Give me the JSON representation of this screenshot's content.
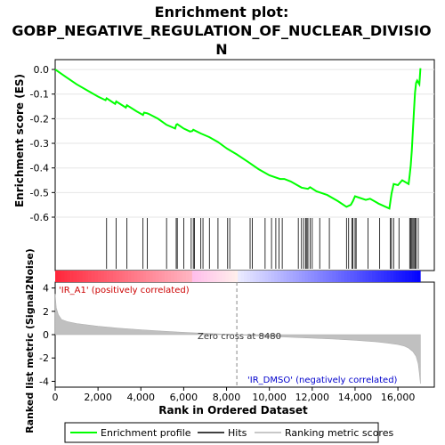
{
  "chart_data": {
    "type": "line",
    "title_line1": "Enrichment plot:",
    "title_line2": "GOBP_NEGATIVE_REGULATION_OF_NUCLEAR_DIVISIO",
    "title_line3": "N",
    "top_panel": {
      "ylabel": "Enrichment score (ES)",
      "ylim": [
        -0.6,
        0.04
      ],
      "yticks": [
        0.0,
        -0.1,
        -0.2,
        -0.3,
        -0.4,
        -0.5,
        -0.6
      ],
      "ytick_labels": [
        "0.0",
        "-0.1",
        "-0.2",
        "-0.3",
        "-0.4",
        "-0.5",
        "-0.6"
      ],
      "line_color": "#00ff00",
      "series": [
        {
          "name": "Enrichment profile",
          "x": [
            0,
            500,
            1000,
            1500,
            2000,
            2350,
            2400,
            2800,
            2850,
            3300,
            3350,
            3800,
            4100,
            4150,
            4300,
            4400,
            4800,
            5200,
            5600,
            5650,
            5700,
            6000,
            6300,
            6400,
            6450,
            6800,
            7200,
            7600,
            8000,
            8480,
            9000,
            9500,
            10000,
            10500,
            10700,
            11000,
            11500,
            11800,
            11900,
            12200,
            12700,
            13200,
            13600,
            13800,
            13900,
            14000,
            14500,
            14700,
            15000,
            15100,
            15600,
            15650,
            15700,
            15800,
            16000,
            16200,
            16500,
            16550,
            16600,
            16650,
            16700,
            16750,
            16800,
            16850,
            16900,
            17000,
            17050
          ],
          "y": [
            0.0,
            -0.03,
            -0.06,
            -0.085,
            -0.11,
            -0.125,
            -0.117,
            -0.14,
            -0.13,
            -0.155,
            -0.145,
            -0.17,
            -0.185,
            -0.175,
            -0.178,
            -0.182,
            -0.2,
            -0.225,
            -0.24,
            -0.225,
            -0.222,
            -0.24,
            -0.252,
            -0.25,
            -0.245,
            -0.26,
            -0.275,
            -0.295,
            -0.32,
            -0.345,
            -0.375,
            -0.405,
            -0.43,
            -0.445,
            -0.445,
            -0.455,
            -0.48,
            -0.485,
            -0.478,
            -0.495,
            -0.51,
            -0.535,
            -0.558,
            -0.55,
            -0.535,
            -0.515,
            -0.53,
            -0.525,
            -0.54,
            -0.545,
            -0.565,
            -0.535,
            -0.505,
            -0.465,
            -0.47,
            -0.45,
            -0.465,
            -0.43,
            -0.39,
            -0.33,
            -0.25,
            -0.17,
            -0.095,
            -0.055,
            -0.045,
            -0.06,
            0.005
          ]
        }
      ]
    },
    "hits_panel": {
      "name": "Hits",
      "hit_ranks": [
        2400,
        2850,
        3350,
        4100,
        4300,
        5200,
        5650,
        5700,
        6000,
        6350,
        6450,
        6500,
        6800,
        6900,
        7200,
        7600,
        8050,
        8150,
        9100,
        9200,
        9800,
        10100,
        10300,
        10450,
        10600,
        11350,
        11500,
        11600,
        11700,
        11750,
        11800,
        11900,
        12000,
        12350,
        12800,
        13600,
        13700,
        13850,
        13900,
        14000,
        14050,
        14600,
        15150,
        15650,
        15700,
        15800,
        16050,
        16550,
        16600,
        16650,
        16700,
        16750,
        16800,
        16850,
        16950
      ]
    },
    "metric_panel": {
      "ylabel": "Ranked list metric (Signal2Noise)",
      "ylim": [
        -4.5,
        4.5
      ],
      "yticks": [
        4,
        2,
        0,
        -2,
        -4
      ],
      "ytick_labels": [
        "4",
        "2",
        "0",
        "-2",
        "-4"
      ],
      "positive_label": "'IR_A1' (positively correlated)",
      "negative_label": "'IR_DMSO' (negatively correlated)",
      "zero_cross_label": "Zero cross at 8480",
      "zero_cross": 8480,
      "series": [
        {
          "name": "Ranking metric scores",
          "x": [
            0,
            50,
            150,
            300,
            600,
            1000,
            2000,
            3000,
            4000,
            5000,
            6000,
            7000,
            8000,
            8480,
            9000,
            10000,
            11000,
            12000,
            13000,
            14000,
            15000,
            15500,
            16000,
            16300,
            16500,
            16700,
            16850,
            16950,
            17000,
            17050
          ],
          "y": [
            3.5,
            2.3,
            1.7,
            1.3,
            1.1,
            0.95,
            0.72,
            0.55,
            0.42,
            0.3,
            0.2,
            0.11,
            0.04,
            0.0,
            -0.06,
            -0.15,
            -0.22,
            -0.3,
            -0.38,
            -0.48,
            -0.62,
            -0.72,
            -0.85,
            -0.98,
            -1.15,
            -1.45,
            -1.85,
            -2.5,
            -3.3,
            -4.2
          ]
        }
      ]
    },
    "xaxis": {
      "label": "Rank in Ordered Dataset",
      "xlim": [
        0,
        17700
      ],
      "ticks": [
        0,
        2000,
        4000,
        6000,
        8000,
        10000,
        12000,
        14000,
        16000
      ],
      "tick_labels": [
        "0",
        "2,000",
        "4,000",
        "6,000",
        "8,000",
        "10,000",
        "12,000",
        "14,000",
        "16,000"
      ]
    },
    "legend": {
      "placement": "bottom",
      "entries": [
        {
          "label": "Enrichment profile",
          "color": "#00ff00"
        },
        {
          "label": "Hits",
          "color": "#000000"
        },
        {
          "label": "Ranking metric scores",
          "color": "#c8c8c8"
        }
      ]
    }
  }
}
